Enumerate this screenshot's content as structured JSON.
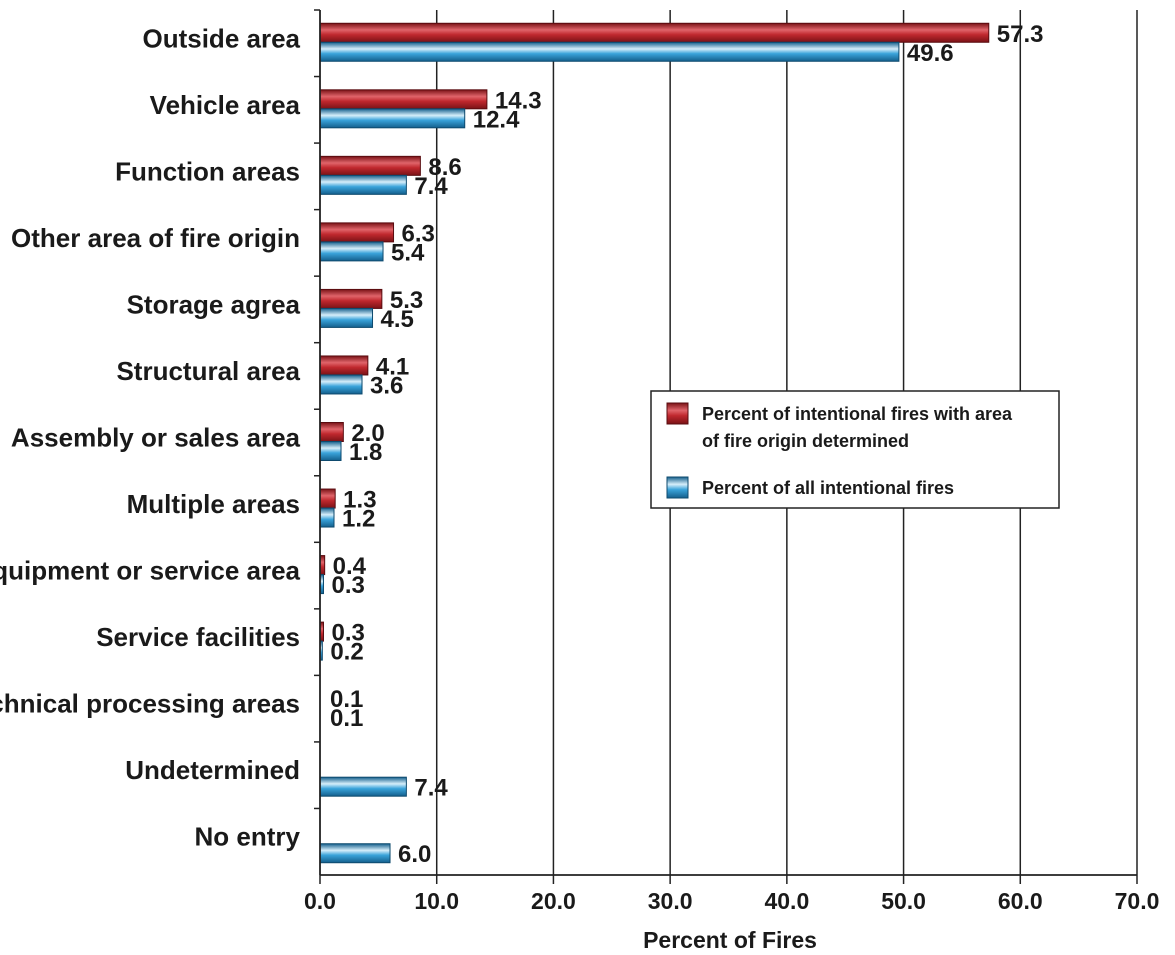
{
  "chart_data": {
    "type": "bar",
    "orientation": "horizontal",
    "categories": [
      "Outside area",
      "Vehicle area",
      "Function areas",
      "Other area of fire origin",
      "Storage agrea",
      "Structural area",
      "Assembly or sales area",
      "Multiple areas",
      "Equipment or service area",
      "Service facilities",
      "Technical processing areas",
      "Undetermined",
      "No entry"
    ],
    "series": [
      {
        "name": "Percent of intentional fires with area of fire origin determined",
        "legend_lines": [
          "Percent of intentional fires with area",
          "of fire origin determined"
        ],
        "color": "#c0282e",
        "values": [
          57.3,
          14.3,
          8.6,
          6.3,
          5.3,
          4.1,
          2.0,
          1.3,
          0.4,
          0.3,
          0.1,
          null,
          null
        ],
        "labels": [
          "57.3",
          "14.3",
          "8.6",
          "6.3",
          "5.3",
          "4.1",
          "2.0",
          "1.3",
          "0.4",
          "0.3",
          "0.1",
          "",
          ""
        ]
      },
      {
        "name": "Percent of all intentional fires",
        "legend_lines": [
          "Percent of all intentional fires"
        ],
        "color": "#2a95d0",
        "values": [
          49.6,
          12.4,
          7.4,
          5.4,
          4.5,
          3.6,
          1.8,
          1.2,
          0.3,
          0.2,
          0.1,
          7.4,
          6.0
        ],
        "labels": [
          "49.6",
          "12.4",
          "7.4",
          "5.4",
          "4.5",
          "3.6",
          "1.8",
          "1.2",
          "0.3",
          "0.2",
          "0.1",
          "7.4",
          "6.0"
        ]
      }
    ],
    "xlabel": "Percent of Fires",
    "xlim": [
      0,
      70
    ],
    "xticks": [
      0,
      10,
      20,
      30,
      40,
      50,
      60,
      70
    ],
    "xtick_labels": [
      "0.0",
      "10.0",
      "20.0",
      "30.0",
      "40.0",
      "50.0",
      "60.0",
      "70.0"
    ],
    "grid": "vertical",
    "legend_position": "center-right"
  }
}
